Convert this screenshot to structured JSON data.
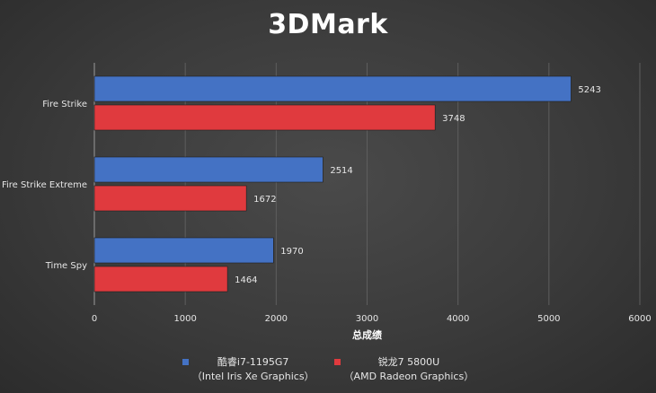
{
  "chart_data": {
    "type": "bar",
    "orientation": "horizontal",
    "title": "3DMark",
    "xlabel": "总成绩",
    "categories": [
      "Fire Strike",
      "Fire Strike Extreme",
      "Time Spy"
    ],
    "series": [
      {
        "name": "酷睿i7-1195G7",
        "subname": "（Intel Iris Xe Graphics）",
        "color": "#4472c4",
        "values": [
          5243,
          2514,
          1970
        ]
      },
      {
        "name": "锐龙7 5800U",
        "subname": "（AMD Radeon Graphics）",
        "color": "#e03a3e",
        "values": [
          3748,
          1672,
          1464
        ]
      }
    ],
    "xlim": [
      0,
      6000
    ],
    "xticks": [
      0,
      1000,
      2000,
      3000,
      4000,
      5000,
      6000
    ],
    "grid": true,
    "legend": "bottom"
  }
}
